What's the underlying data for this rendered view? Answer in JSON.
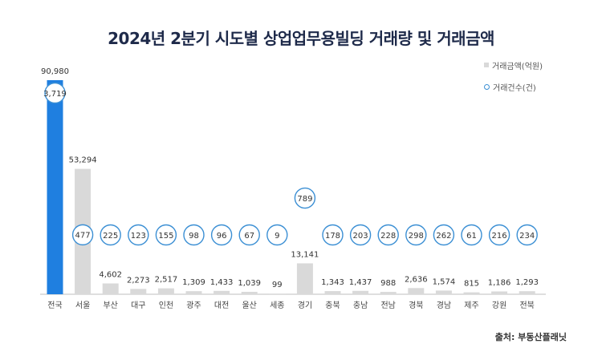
{
  "title": "2024년 2분기 시도별 상업업무용빌딩 거래량 및 거래금액",
  "source": "출처: 부동산플래닛",
  "legend": {
    "amount_label": "거래금액(억원)",
    "count_label": "거래건수(건)"
  },
  "colors": {
    "highlight_bar": "#1f7fe0",
    "bar": "#d9d9d9",
    "circle_stroke": "#3b8fd4"
  },
  "chart_data": {
    "type": "bar",
    "categories": [
      "전국",
      "서울",
      "부산",
      "대구",
      "인천",
      "광주",
      "대전",
      "울산",
      "세종",
      "경기",
      "충북",
      "충남",
      "전남",
      "경북",
      "경남",
      "제주",
      "강원",
      "전북"
    ],
    "series": [
      {
        "name": "거래금액(억원)",
        "type": "bar",
        "values": [
          90980,
          53294,
          4602,
          2273,
          2517,
          1309,
          1433,
          1039,
          99,
          13141,
          1343,
          1437,
          988,
          2636,
          1574,
          815,
          1186,
          1293
        ],
        "labels": [
          "90,980",
          "53,294",
          "4,602",
          "2,273",
          "2,517",
          "1,309",
          "1,433",
          "1,039",
          "99",
          "13,141",
          "1,343",
          "1,437",
          "988",
          "2,636",
          "1,574",
          "815",
          "1,186",
          "1,293"
        ]
      },
      {
        "name": "거래건수(건)",
        "type": "circle-marker",
        "values": [
          3719,
          477,
          225,
          123,
          155,
          98,
          96,
          67,
          9,
          789,
          178,
          203,
          228,
          298,
          262,
          61,
          216,
          234
        ],
        "labels": [
          "3,719",
          "477",
          "225",
          "123",
          "155",
          "98",
          "96",
          "67",
          "9",
          "789",
          "178",
          "203",
          "228",
          "298",
          "262",
          "61",
          "216",
          "234"
        ]
      }
    ],
    "legend_position": "top-right",
    "grid": false,
    "highlight_category": "전국"
  }
}
